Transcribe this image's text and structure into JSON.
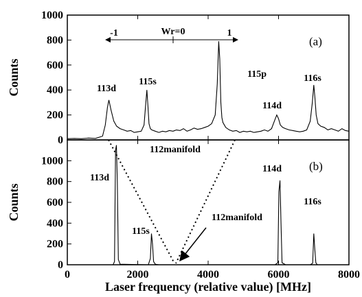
{
  "chart_data": [
    {
      "type": "line",
      "panel_label": "(a)",
      "ylabel": "Counts",
      "xlim": [
        0,
        8000
      ],
      "ylim": [
        0,
        1000
      ],
      "yticks": [
        "0",
        "200",
        "400",
        "600",
        "800",
        "1000"
      ],
      "x": [
        0,
        200,
        400,
        600,
        800,
        1000,
        1080,
        1140,
        1180,
        1240,
        1320,
        1400,
        1500,
        1600,
        1700,
        1800,
        1900,
        2000,
        2100,
        2180,
        2230,
        2260,
        2290,
        2320,
        2360,
        2400,
        2500,
        2600,
        2700,
        2800,
        2900,
        3000,
        3100,
        3200,
        3300,
        3400,
        3500,
        3600,
        3700,
        3800,
        3900,
        4000,
        4100,
        4200,
        4260,
        4300,
        4330,
        4360,
        4390,
        4420,
        4460,
        4500,
        4600,
        4700,
        4800,
        4900,
        5000,
        5100,
        5200,
        5300,
        5400,
        5500,
        5600,
        5700,
        5800,
        5880,
        5950,
        6000,
        6050,
        6120,
        6200,
        6300,
        6400,
        6500,
        6600,
        6700,
        6800,
        6900,
        6960,
        7000,
        7030,
        7070,
        7120,
        7200,
        7300,
        7400,
        7500,
        7600,
        7700,
        7800,
        7900,
        8000
      ],
      "values": [
        10,
        12,
        10,
        15,
        12,
        30,
        120,
        260,
        320,
        240,
        150,
        110,
        90,
        80,
        70,
        75,
        60,
        65,
        70,
        120,
        300,
        400,
        270,
        130,
        90,
        80,
        70,
        60,
        70,
        65,
        75,
        70,
        80,
        75,
        90,
        70,
        80,
        95,
        85,
        90,
        100,
        110,
        130,
        200,
        450,
        790,
        650,
        300,
        180,
        140,
        120,
        100,
        80,
        70,
        75,
        60,
        70,
        65,
        70,
        60,
        65,
        70,
        80,
        70,
        90,
        150,
        200,
        170,
        120,
        100,
        90,
        80,
        75,
        70,
        65,
        70,
        80,
        150,
        300,
        440,
        350,
        200,
        130,
        110,
        100,
        80,
        90,
        80,
        70,
        90,
        75,
        70
      ],
      "peak_labels": [
        "113d",
        "115s",
        "115p",
        "114d",
        "116s"
      ],
      "wr_labels": [
        "-1",
        "Wr=0",
        "1"
      ]
    },
    {
      "type": "line",
      "panel_label": "(b)",
      "xlabel": "Laser frequency (relative value) [MHz]",
      "ylabel": "Counts",
      "xlim": [
        0,
        8000
      ],
      "ylim": [
        0,
        1200
      ],
      "xticks": [
        "0",
        "2000",
        "4000",
        "6000",
        "8000"
      ],
      "yticks": [
        "0",
        "200",
        "400",
        "600",
        "800",
        "1000"
      ],
      "x": [
        0,
        1000,
        1300,
        1340,
        1370,
        1395,
        1420,
        1450,
        1500,
        2300,
        2360,
        2390,
        2420,
        2450,
        2500,
        2600,
        5900,
        5980,
        6010,
        6040,
        6070,
        6100,
        6200,
        6900,
        6970,
        7000,
        7030,
        7060,
        7100,
        7200,
        8000
      ],
      "values": [
        0,
        0,
        0,
        30,
        1100,
        1150,
        800,
        50,
        5,
        0,
        60,
        300,
        200,
        30,
        5,
        0,
        0,
        20,
        700,
        810,
        400,
        20,
        0,
        0,
        15,
        300,
        150,
        20,
        0,
        0,
        0
      ],
      "peak_labels": [
        "112manifold",
        "113d",
        "115s",
        "112manifold",
        "114d",
        "116s"
      ]
    }
  ]
}
